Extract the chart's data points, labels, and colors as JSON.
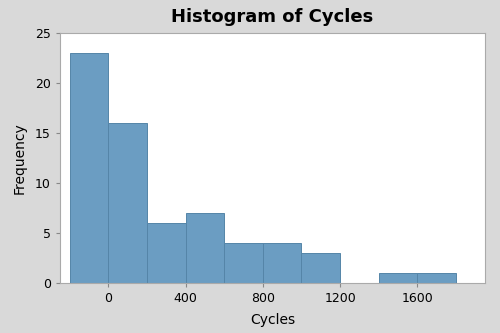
{
  "title": "Histogram of Cycles",
  "xlabel": "Cycles",
  "ylabel": "Frequency",
  "bar_color": "#6B9DC2",
  "bar_edgecolor": "#5585a8",
  "background_color": "#D9D9D9",
  "plot_bg_color": "#FFFFFF",
  "bin_edges": [
    -200,
    0,
    200,
    400,
    600,
    800,
    1000,
    1200,
    1400,
    1600,
    1800
  ],
  "frequencies": [
    23,
    16,
    6,
    7,
    4,
    4,
    3,
    0,
    1,
    1
  ],
  "xlim": [
    -250,
    1950
  ],
  "ylim": [
    0,
    25
  ],
  "yticks": [
    0,
    5,
    10,
    15,
    20,
    25
  ],
  "xticks": [
    0,
    400,
    800,
    1200,
    1600
  ],
  "title_fontsize": 13,
  "label_fontsize": 10,
  "tick_fontsize": 9
}
